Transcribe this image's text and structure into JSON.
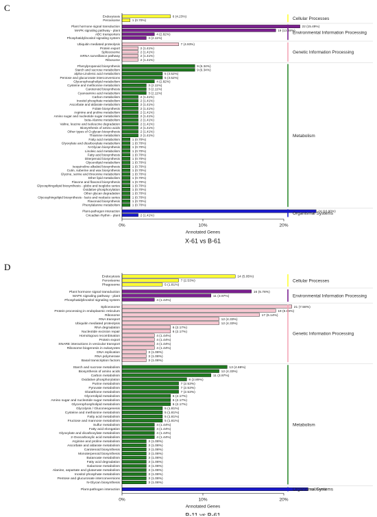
{
  "chart_data": [
    {
      "type": "bar",
      "orientation": "horizontal",
      "panel_label": "C",
      "caption": "X-61 vs B-61",
      "xlabel": "Annotated Genes",
      "xlim": [
        0,
        20
      ],
      "xticks": [
        "0%",
        "10%",
        "20%"
      ],
      "groups": [
        {
          "name": "Cellular Processes",
          "color": "#ffff33",
          "bar_color": "#ffff33",
          "items": [
            {
              "label": "Endocytosis",
              "value": 6,
              "text": "6 (4.23%)"
            },
            {
              "label": "Peroxisome",
              "value": 1,
              "text": "1 (0.70%)"
            }
          ]
        },
        {
          "name": "Environmental Information Processing",
          "color": "#7a1f8f",
          "bar_color": "#7a1f8f",
          "items": [
            {
              "label": "Plant hormone signal transduction",
              "value": 22,
              "text": "22 (15.49%)"
            },
            {
              "label": "MAPK signaling pathway - plant",
              "value": 19,
              "text": "19 (13.38%)"
            },
            {
              "label": "ABC transporters",
              "value": 4,
              "text": "4 (2.82%)"
            },
            {
              "label": "Phosphatidylinositol signaling system",
              "value": 3,
              "text": "3 (2.11%)"
            }
          ]
        },
        {
          "name": "Genetic Information Processing",
          "color": "#f4a6b7",
          "bar_color": "#f6c7d1",
          "items": [
            {
              "label": "Ubiquitin mediated proteolysis",
              "value": 7,
              "text": "7 (4.93%)"
            },
            {
              "label": "Protein export",
              "value": 2,
              "text": "2 (1.41%)"
            },
            {
              "label": "Spliceosome",
              "value": 2,
              "text": "2 (1.41%)"
            },
            {
              "label": "mRNA surveillance pathway",
              "value": 2,
              "text": "2 (1.41%)"
            },
            {
              "label": "Ribosome",
              "value": 2,
              "text": "2 (1.41%)"
            }
          ]
        },
        {
          "name": "Metabolism",
          "color": "#2e8b2e",
          "bar_color": "#1f7a1f",
          "items": [
            {
              "label": "Phenylpropanoid biosynthesis",
              "value": 9,
              "text": "9 (6.34%)"
            },
            {
              "label": "Starch and sucrose metabolism",
              "value": 9,
              "text": "9 (6.34%)"
            },
            {
              "label": "alpha-Linolenic acid metabolism",
              "value": 5,
              "text": "5 (3.52%)"
            },
            {
              "label": "Pentose and glucuronate interconversions",
              "value": 5,
              "text": "5 (3.52%)"
            },
            {
              "label": "Glycerophospholipid metabolism",
              "value": 4,
              "text": "4 (2.82%)"
            },
            {
              "label": "Cysteine and methionine metabolism",
              "value": 3,
              "text": "3 (2.11%)"
            },
            {
              "label": "Carotenoid biosynthesis",
              "value": 3,
              "text": "3 (2.11%)"
            },
            {
              "label": "Cyanoamino acid metabolism",
              "value": 3,
              "text": "3 (2.11%)"
            },
            {
              "label": "Carbon metabolism",
              "value": 2,
              "text": "2 (1.41%)"
            },
            {
              "label": "Inositol phosphate metabolism",
              "value": 2,
              "text": "2 (1.41%)"
            },
            {
              "label": "Ascorbate and aldarate metabolism",
              "value": 2,
              "text": "2 (1.41%)"
            },
            {
              "label": "Folate biosynthesis",
              "value": 2,
              "text": "2 (1.41%)"
            },
            {
              "label": "Arginine and proline metabolism",
              "value": 2,
              "text": "2 (1.41%)"
            },
            {
              "label": "Amino sugar and nucleotide sugar metabolism",
              "value": 2,
              "text": "2 (1.41%)"
            },
            {
              "label": "beta-Alanine metabolism",
              "value": 2,
              "text": "2 (1.41%)"
            },
            {
              "label": "Valine, leucine and isoleucine degradation",
              "value": 2,
              "text": "2 (1.41%)"
            },
            {
              "label": "Biosynthesis of amino acids",
              "value": 2,
              "text": "2 (1.41%)"
            },
            {
              "label": "Other types of O-glycan biosynthesis",
              "value": 2,
              "text": "2 (1.41%)"
            },
            {
              "label": "Thiamine metabolism",
              "value": 2,
              "text": "2 (1.41%)"
            },
            {
              "label": "Fatty acid metabolism",
              "value": 1,
              "text": "1 (0.70%)"
            },
            {
              "label": "Glyoxylate and dicarboxylate metabolism",
              "value": 1,
              "text": "1 (0.70%)"
            },
            {
              "label": "N-Glycan biosynthesis",
              "value": 1,
              "text": "1 (0.70%)"
            },
            {
              "label": "Linoleic acid metabolism",
              "value": 1,
              "text": "1 (0.70%)"
            },
            {
              "label": "Fatty acid biosynthesis",
              "value": 1,
              "text": "1 (0.70%)"
            },
            {
              "label": "Diterpenoid biosynthesis",
              "value": 1,
              "text": "1 (0.70%)"
            },
            {
              "label": "Glycerolipid metabolism",
              "value": 1,
              "text": "1 (0.70%)"
            },
            {
              "label": "Isoquinoline alkaloid biosynthesis",
              "value": 1,
              "text": "1 (0.70%)"
            },
            {
              "label": "Cutin, suberine and wax biosynthesis",
              "value": 1,
              "text": "1 (0.70%)"
            },
            {
              "label": "Glycine, serine and threonine metabolism",
              "value": 1,
              "text": "1 (0.70%)"
            },
            {
              "label": "Ether lipid metabolism",
              "value": 1,
              "text": "1 (0.70%)"
            },
            {
              "label": "Flavone and flavonol biosynthesis",
              "value": 1,
              "text": "1 (0.70%)"
            },
            {
              "label": "Glycosphingolipid biosynthesis - globo and isoglobo series",
              "value": 1,
              "text": "1 (0.70%)"
            },
            {
              "label": "Oxidative phosphorylation",
              "value": 1,
              "text": "1 (0.70%)"
            },
            {
              "label": "Other glycan degradation",
              "value": 1,
              "text": "1 (0.70%)"
            },
            {
              "label": "Glycosphingolipid biosynthesis - lacto and neolacto series",
              "value": 1,
              "text": "1 (0.70%)"
            },
            {
              "label": "Flavonoid biosynthesis",
              "value": 1,
              "text": "1 (0.70%)"
            },
            {
              "label": "Phenylalanine metabolism",
              "value": 1,
              "text": "1 (0.70%)"
            }
          ]
        },
        {
          "name": "Organismal Systems",
          "color": "#1a1acc",
          "bar_color": "#1a1acc",
          "items": [
            {
              "label": "Plant-pathogen interaction",
              "value": 24,
              "text": "24 (16.90%)"
            },
            {
              "label": "Circadian rhythm - plant",
              "value": 2,
              "text": "2 (1.41%)"
            }
          ]
        }
      ]
    },
    {
      "type": "bar",
      "orientation": "horizontal",
      "panel_label": "D",
      "caption": "B-11 vs B-61",
      "xlabel": "Annotated Genes",
      "xlim": [
        0,
        20
      ],
      "xticks": [
        "0%",
        "10%",
        "20%"
      ],
      "groups": [
        {
          "name": "Cellular Processes",
          "color": "#ffff33",
          "bar_color": "#ffff33",
          "items": [
            {
              "label": "Endocytosis",
              "value": 14,
              "text": "14 (5.05%)"
            },
            {
              "label": "Peroxisome",
              "value": 7,
              "text": "7 (2.53%)"
            },
            {
              "label": "Phagosome",
              "value": 5,
              "text": "5 (1.81%)"
            }
          ]
        },
        {
          "name": "Environmental Information Processing",
          "color": "#7a1f8f",
          "bar_color": "#7a1f8f",
          "items": [
            {
              "label": "Plant hormone signal transduction",
              "value": 16,
              "text": "16 (5.78%)"
            },
            {
              "label": "MAPK signaling pathway - plant",
              "value": 11,
              "text": "11 (3.97%)"
            },
            {
              "label": "Phosphatidylinositol signaling system",
              "value": 4,
              "text": "4 (1.44%)"
            }
          ]
        },
        {
          "name": "Genetic Information Processing",
          "color": "#f4a6b7",
          "bar_color": "#f6c7d1",
          "items": [
            {
              "label": "Spliceosome",
              "value": 21,
              "text": "21 (7.58%)"
            },
            {
              "label": "Protein processing in endoplasmic reticulum",
              "value": 19,
              "text": "19 (6.86%)"
            },
            {
              "label": "Ribosome",
              "value": 17,
              "text": "17 (6.14%)"
            },
            {
              "label": "RNA transport",
              "value": 12,
              "text": "12 (4.33%)"
            },
            {
              "label": "Ubiquitin mediated proteolysis",
              "value": 12,
              "text": "12 (4.33%)"
            },
            {
              "label": "RNA degradation",
              "value": 6,
              "text": "6 (2.17%)"
            },
            {
              "label": "Nucleotide excision repair",
              "value": 6,
              "text": "6 (2.17%)"
            },
            {
              "label": "Homologous recombination",
              "value": 4,
              "text": "4 (1.44%)"
            },
            {
              "label": "Protein export",
              "value": 4,
              "text": "4 (1.44%)"
            },
            {
              "label": "SNARE interactions in vesicular transport",
              "value": 4,
              "text": "4 (1.44%)"
            },
            {
              "label": "Ribosome biogenesis in eukaryotes",
              "value": 4,
              "text": "4 (1.44%)"
            },
            {
              "label": "DNA replication",
              "value": 3,
              "text": "3 (1.08%)"
            },
            {
              "label": "RNA polymerase",
              "value": 3,
              "text": "3 (1.08%)"
            },
            {
              "label": "Basal transcription factors",
              "value": 3,
              "text": "3 (1.08%)"
            }
          ]
        },
        {
          "name": "Metabolism",
          "color": "#2e8b2e",
          "bar_color": "#1f7a1f",
          "items": [
            {
              "label": "Starch and sucrose metabolism",
              "value": 13,
              "text": "13 (4.69%)"
            },
            {
              "label": "Biosynthesis of amino acids",
              "value": 12,
              "text": "12 (4.33%)"
            },
            {
              "label": "Carbon metabolism",
              "value": 11,
              "text": "11 (3.97%)"
            },
            {
              "label": "Oxidative phosphorylation",
              "value": 8,
              "text": "8 (2.89%)"
            },
            {
              "label": "Purine metabolism",
              "value": 7,
              "text": "7 (2.53%)"
            },
            {
              "label": "Pyruvate metabolism",
              "value": 7,
              "text": "7 (2.53%)"
            },
            {
              "label": "Glutathione metabolism",
              "value": 7,
              "text": "7 (2.53%)"
            },
            {
              "label": "Glycerolipid metabolism",
              "value": 6,
              "text": "6 (2.17%)"
            },
            {
              "label": "Amino sugar and nucleotide sugar metabolism",
              "value": 6,
              "text": "6 (2.17%)"
            },
            {
              "label": "Glycerophospholipid metabolism",
              "value": 6,
              "text": "6 (2.17%)"
            },
            {
              "label": "Glycolysis / Gluconeogenesis",
              "value": 5,
              "text": "5 (1.81%)"
            },
            {
              "label": "Cysteine and methionine metabolism",
              "value": 5,
              "text": "5 (1.81%)"
            },
            {
              "label": "Fatty acid metabolism",
              "value": 5,
              "text": "5 (1.81%)"
            },
            {
              "label": "Fructose and mannose metabolism",
              "value": 5,
              "text": "5 (1.81%)"
            },
            {
              "label": "Sulfur metabolism",
              "value": 4,
              "text": "4 (1.44%)"
            },
            {
              "label": "Fatty acid elongation",
              "value": 4,
              "text": "4 (1.44%)"
            },
            {
              "label": "Glyoxylate and dicarboxylate metabolism",
              "value": 4,
              "text": "4 (1.44%)"
            },
            {
              "label": "2-Oxocarboxylic acid metabolism",
              "value": 4,
              "text": "4 (1.44%)"
            },
            {
              "label": "Arginine and proline metabolism",
              "value": 3,
              "text": "3 (1.08%)"
            },
            {
              "label": "Ascorbate and aldarate metabolism",
              "value": 3,
              "text": "3 (1.08%)"
            },
            {
              "label": "Carotenoid biosynthesis",
              "value": 3,
              "text": "3 (1.08%)"
            },
            {
              "label": "Monoterpenoid biosynthesis",
              "value": 3,
              "text": "3 (1.08%)"
            },
            {
              "label": "Butanoate metabolism",
              "value": 3,
              "text": "3 (1.08%)"
            },
            {
              "label": "Fatty acid degradation",
              "value": 3,
              "text": "3 (1.08%)"
            },
            {
              "label": "Galactose metabolism",
              "value": 3,
              "text": "3 (1.08%)"
            },
            {
              "label": "Alanine, aspartate and glutamate metabolism",
              "value": 3,
              "text": "3 (1.08%)"
            },
            {
              "label": "Inositol phosphate metabolism",
              "value": 3,
              "text": "3 (1.08%)"
            },
            {
              "label": "Pentose and glucuronate interconversions",
              "value": 3,
              "text": "3 (1.08%)"
            },
            {
              "label": "N-Glycan biosynthesis",
              "value": 3,
              "text": "3 (1.08%)"
            }
          ]
        },
        {
          "name": "Organismal Systems",
          "color": "#1a1acc",
          "bar_color": "#1a1acc",
          "items": [
            {
              "label": "Plant-pathogen interaction",
              "value": 23,
              "text": "23 (8.30%)"
            }
          ]
        }
      ]
    }
  ]
}
